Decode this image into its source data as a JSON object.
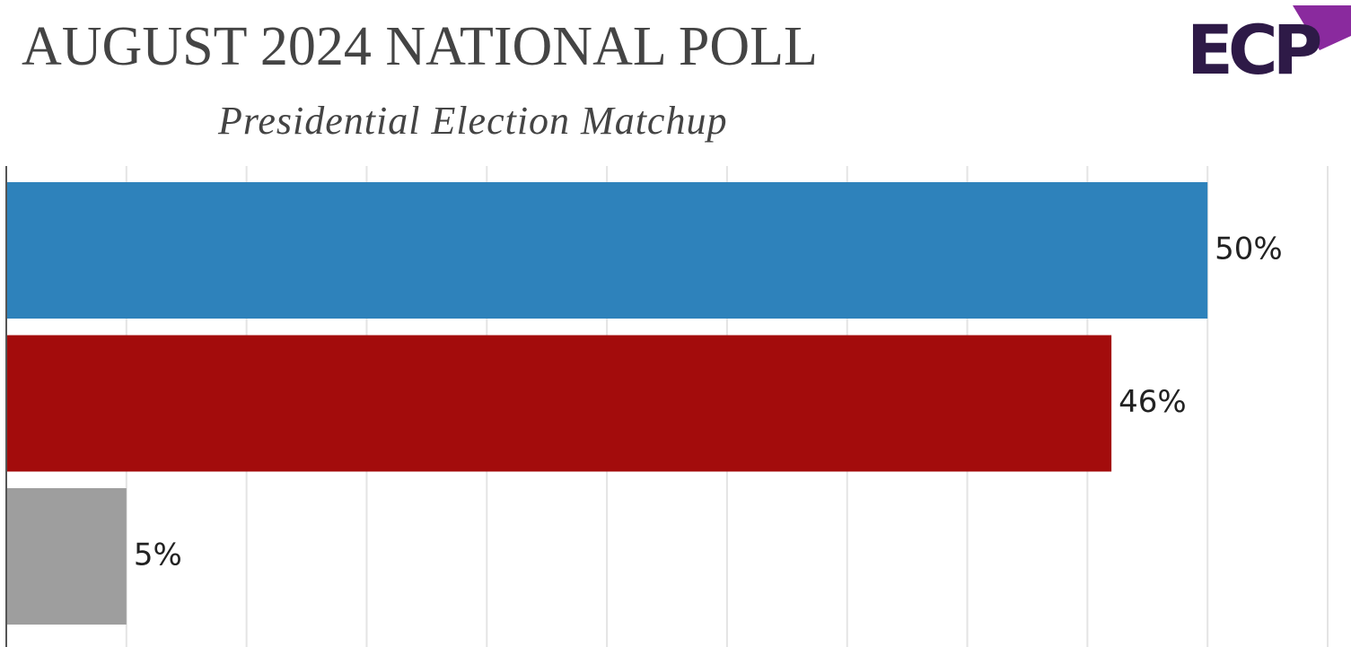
{
  "chart_data": {
    "type": "bar",
    "orientation": "horizontal",
    "title": "AUGUST 2024 NATIONAL POLL",
    "subtitle": "Presidential Election Matchup",
    "logo": "ECP",
    "categories": [
      null,
      null,
      null
    ],
    "values": [
      50,
      46,
      5
    ],
    "value_labels": [
      "50%",
      "46%",
      "5%"
    ],
    "colors": [
      "#2e82bb",
      "#a30c0c",
      "#9e9e9e"
    ],
    "xlim": [
      0,
      55
    ],
    "xticks": [
      0,
      5,
      10,
      15,
      20,
      25,
      30,
      35,
      40,
      45,
      50,
      55
    ],
    "grid": true
  }
}
